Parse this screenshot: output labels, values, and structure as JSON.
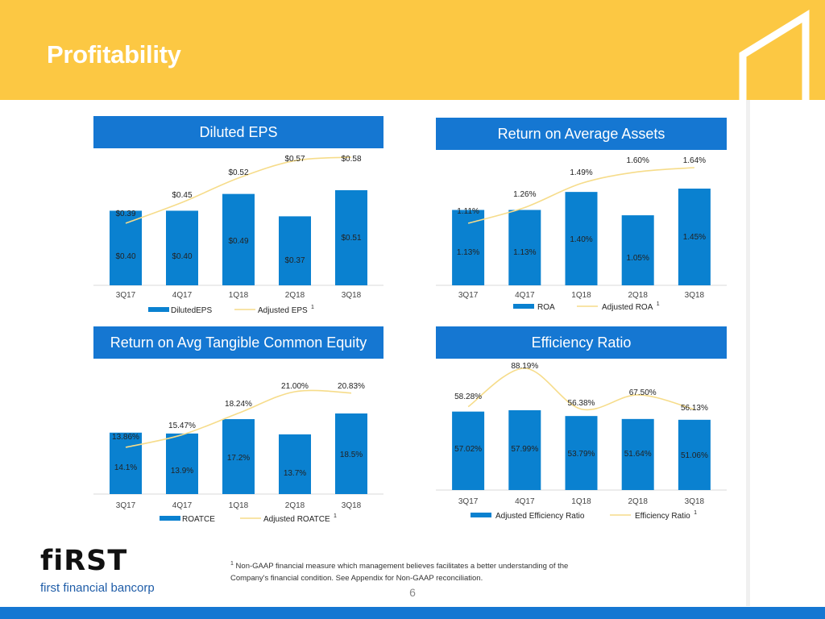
{
  "page": {
    "title": "Profitability",
    "page_number": "6",
    "footnote_marker": "1",
    "footnote_line1": "Non-GAAP financial measure which management believes facilitates a better understanding of the",
    "footnote_line2": "Company's financial condition.  See Appendix for Non-GAAP reconciliation.",
    "logo_word": "fiRST",
    "logo_sub": "first financial bancorp"
  },
  "colors": {
    "header": "#fcc843",
    "panel_header": "#1577d2",
    "bar": "#0a81d0",
    "line": "#f6dc8a",
    "bottom_bar": "#1577d2"
  },
  "chart_data": [
    {
      "type": "bar",
      "title": "Diluted EPS",
      "categories": [
        "3Q17",
        "4Q17",
        "1Q18",
        "2Q18",
        "3Q18"
      ],
      "series": [
        {
          "name": "DilutedEPS",
          "kind": "bar",
          "values": [
            0.4,
            0.4,
            0.49,
            0.37,
            0.51
          ],
          "labels": [
            "$0.40",
            "$0.40",
            "$0.49",
            "$0.37",
            "$0.51"
          ]
        },
        {
          "name": "Adjusted EPS",
          "kind": "line",
          "values": [
            0.39,
            0.45,
            0.52,
            0.57,
            0.58
          ],
          "labels": [
            "$0.39",
            "$0.45",
            "$0.52",
            "$0.57",
            "$0.58"
          ]
        }
      ],
      "legend": [
        {
          "label": "DilutedEPS",
          "kind": "bar"
        },
        {
          "label": "Adjusted EPS",
          "kind": "line",
          "sup": "1"
        }
      ]
    },
    {
      "type": "bar",
      "title": "Return on Average Assets",
      "categories": [
        "3Q17",
        "4Q17",
        "1Q18",
        "2Q18",
        "3Q18"
      ],
      "series": [
        {
          "name": "ROA",
          "kind": "bar",
          "values": [
            1.13,
            1.13,
            1.4,
            1.05,
            1.45
          ],
          "labels": [
            "1.13%",
            "1.13%",
            "1.40%",
            "1.05%",
            "1.45%"
          ]
        },
        {
          "name": "Adjusted ROA",
          "kind": "line",
          "values": [
            1.11,
            1.26,
            1.49,
            1.6,
            1.64
          ],
          "labels": [
            "1.11%",
            "1.26%",
            "1.49%",
            "1.60%",
            "1.64%"
          ]
        }
      ],
      "legend": [
        {
          "label": "ROA",
          "kind": "bar"
        },
        {
          "label": "Adjusted ROA",
          "kind": "line",
          "sup": "1"
        }
      ]
    },
    {
      "type": "bar",
      "title": "Return on Avg Tangible Common Equity",
      "categories": [
        "3Q17",
        "4Q17",
        "1Q18",
        "2Q18",
        "3Q18"
      ],
      "series": [
        {
          "name": "ROATCE",
          "kind": "bar",
          "values": [
            14.1,
            13.9,
            17.2,
            13.7,
            18.5
          ],
          "labels": [
            "14.1%",
            "13.9%",
            "17.2%",
            "13.7%",
            "18.5%"
          ]
        },
        {
          "name": "Adjusted ROATCE",
          "kind": "line",
          "values": [
            13.86,
            15.47,
            18.24,
            21.0,
            20.83
          ],
          "labels": [
            "13.86%",
            "15.47%",
            "18.24%",
            "21.00%",
            "20.83%"
          ]
        }
      ],
      "legend": [
        {
          "label": "ROATCE",
          "kind": "bar"
        },
        {
          "label": "Adjusted ROATCE",
          "kind": "line",
          "sup": "1"
        }
      ]
    },
    {
      "type": "bar",
      "title": "Efficiency Ratio",
      "categories": [
        "3Q17",
        "4Q17",
        "1Q18",
        "2Q18",
        "3Q18"
      ],
      "series": [
        {
          "name": "Adjusted Efficiency Ratio",
          "kind": "bar",
          "values": [
            57.02,
            57.99,
            53.79,
            51.64,
            51.06
          ],
          "labels": [
            "57.02%",
            "57.99%",
            "53.79%",
            "51.64%",
            "51.06%"
          ]
        },
        {
          "name": "Efficiency Ratio",
          "kind": "line",
          "values": [
            58.28,
            88.19,
            56.38,
            67.5,
            56.13
          ],
          "labels": [
            "58.28%",
            "88.19%",
            "56.38%",
            "67.50%",
            "56.13%"
          ]
        }
      ],
      "legend": [
        {
          "label": "Adjusted Efficiency Ratio",
          "kind": "bar"
        },
        {
          "label": "Efficiency Ratio",
          "kind": "line",
          "sup": "1"
        }
      ]
    }
  ]
}
